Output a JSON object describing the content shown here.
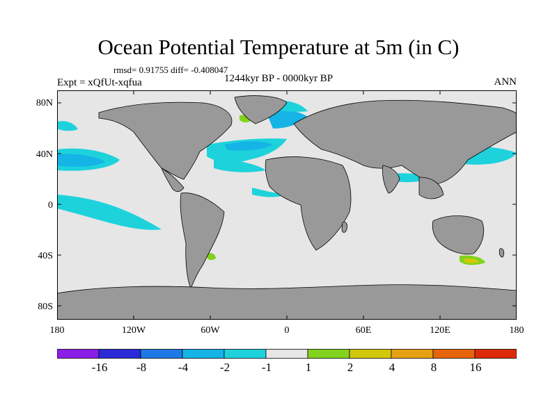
{
  "title": "Ocean Potential Temperature at 5m (in C)",
  "stats": "rmsd= 0.91755  diff= -0.408047",
  "experiment": "Expt = xQfUt-xqfua",
  "period": "1244kyr BP - 0000kyr BP",
  "season": "ANN",
  "lat_labels": [
    "80N",
    "40N",
    "0",
    "40S",
    "80S"
  ],
  "lon_labels": [
    "180",
    "120W",
    "60W",
    "0",
    "60E",
    "120E",
    "180"
  ],
  "colorbar": {
    "colors": [
      "#8a1ee6",
      "#2a2ad8",
      "#1e78e6",
      "#14b4e6",
      "#1ed2dc",
      "#e6e6e6",
      "#82d21e",
      "#d2c80a",
      "#e6a014",
      "#e6640a",
      "#dc2a0a"
    ],
    "labels": [
      "-16",
      "-8",
      "-4",
      "-2",
      "-1",
      "1",
      "2",
      "4",
      "8",
      "16"
    ]
  },
  "map_colors": {
    "ocean": "#e6e6e6",
    "land": "#999999",
    "cool_light": "#1ed2dc",
    "cool_mid": "#14b4e6",
    "cool_deep": "#1e78e6",
    "cool_dark": "#2a2ad8",
    "warm_green": "#82d21e",
    "warm_yellow": "#d2c80a"
  }
}
